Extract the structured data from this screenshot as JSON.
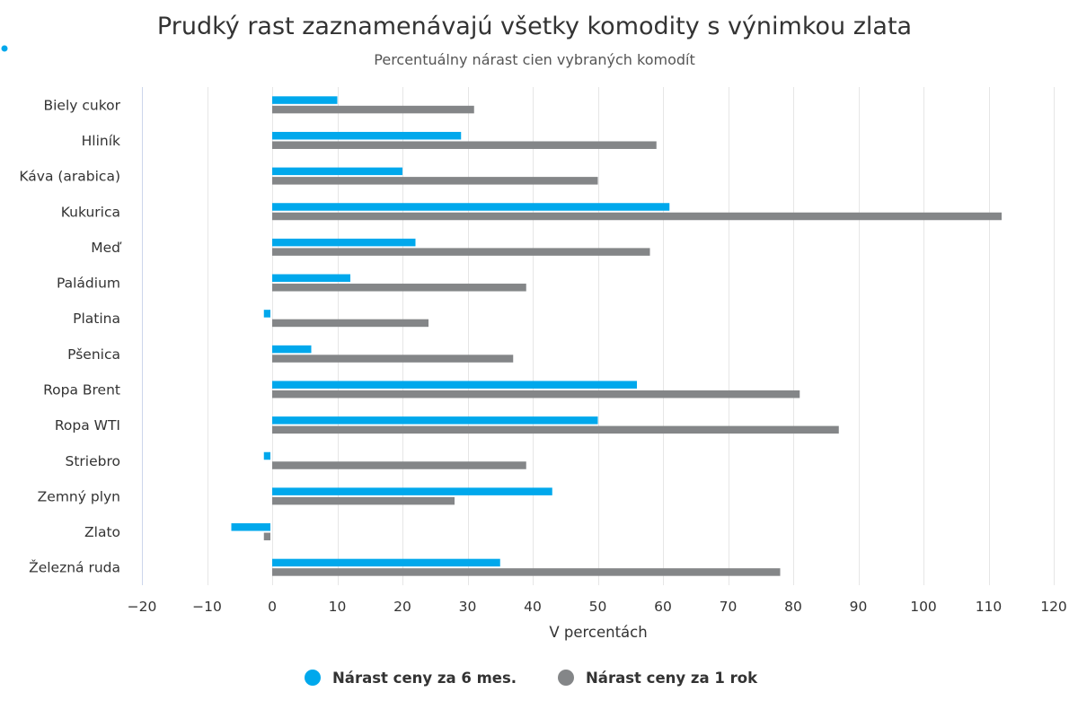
{
  "chart_data": {
    "type": "bar",
    "orientation": "horizontal",
    "title": "Prudký rast zaznamenávajú všetky komodity s výnimkou zlata",
    "subtitle": "Percentuálny nárast cien vybraných komodít",
    "xlabel": "V percentách",
    "ylabel": "",
    "xlim": [
      -20,
      120
    ],
    "ticks": [
      -20,
      -10,
      0,
      10,
      20,
      30,
      40,
      50,
      60,
      70,
      80,
      90,
      100,
      110,
      120
    ],
    "grid": true,
    "legend_position": "bottom",
    "categories": [
      "Biely cukor",
      "Hliník",
      "Káva (arabica)",
      "Kukurica",
      "Meď",
      "Paládium",
      "Platina",
      "Pšenica",
      "Ropa Brent",
      "Ropa WTI",
      "Striebro",
      "Zemný plyn",
      "Zlato",
      "Železná ruda"
    ],
    "series": [
      {
        "name": "Nárast ceny za 6 mes.",
        "color": "#00a8ec",
        "values": [
          10,
          29,
          20,
          61,
          22,
          12,
          -1,
          6,
          56,
          50,
          -1,
          43,
          -6,
          35
        ]
      },
      {
        "name": "Nárast ceny za 1 rok",
        "color": "#848688",
        "values": [
          31,
          59,
          50,
          112,
          58,
          39,
          24,
          37,
          81,
          87,
          39,
          28,
          -1,
          78
        ]
      }
    ]
  }
}
